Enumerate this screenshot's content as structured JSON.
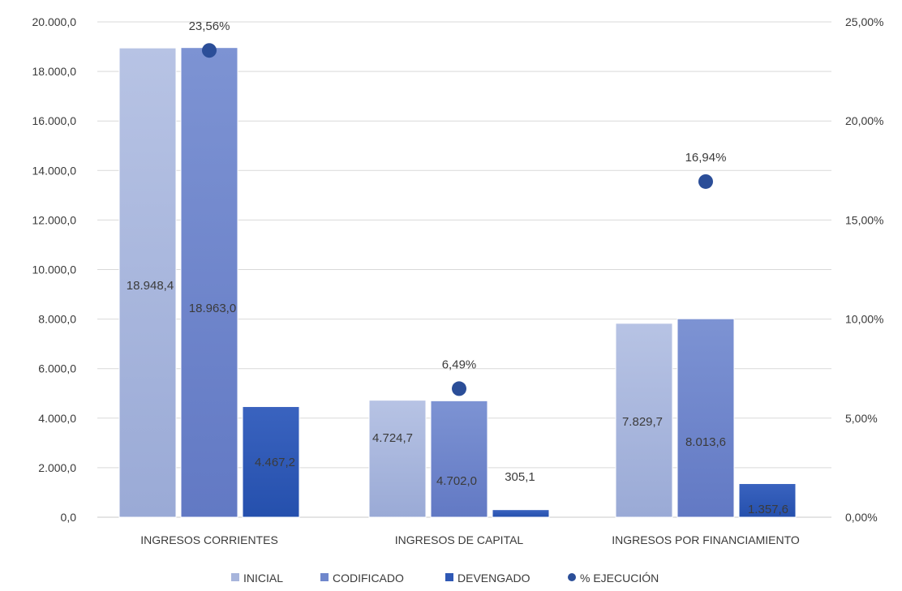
{
  "chart_data": {
    "type": "bar",
    "categories": [
      "INGRESOS CORRIENTES",
      "INGRESOS DE CAPITAL",
      "INGRESOS POR FINANCIAMIENTO"
    ],
    "series": [
      {
        "name": "INICIAL",
        "values": [
          18948.4,
          4724.7,
          7829.7
        ],
        "labels": [
          "18.948,4",
          "4.724,7",
          "7.829,7"
        ],
        "color": "#a7b5dc"
      },
      {
        "name": "CODIFICADO",
        "values": [
          18963.0,
          4702.0,
          8013.6
        ],
        "labels": [
          "18.963,0",
          "4.702,0",
          "8.013,6"
        ],
        "color": "#6f87cc"
      },
      {
        "name": "DEVENGADO",
        "values": [
          4467.2,
          305.1,
          1357.6
        ],
        "labels": [
          "4.467,2",
          "305,1",
          "1.357,6"
        ],
        "color": "#2f58b5"
      }
    ],
    "line_series": {
      "name": "% EJECUCIÓN",
      "values": [
        23.56,
        6.49,
        16.94
      ],
      "labels": [
        "23,56%",
        "6,49%",
        "16,94%"
      ],
      "color": "#2b4e98",
      "axis": "right"
    },
    "ylim": [
      0,
      20000
    ],
    "y_ticks": [
      0,
      2000,
      4000,
      6000,
      8000,
      10000,
      12000,
      14000,
      16000,
      18000,
      20000
    ],
    "y_tick_labels": [
      "0,0",
      "2.000,0",
      "4.000,0",
      "6.000,0",
      "8.000,0",
      "10.000,0",
      "12.000,0",
      "14.000,0",
      "16.000,0",
      "18.000,0",
      "20.000,0"
    ],
    "y2lim": [
      0,
      25
    ],
    "y2_ticks": [
      0,
      5,
      10,
      15,
      20,
      25
    ],
    "y2_tick_labels": [
      "0,00%",
      "5,00%",
      "10,00%",
      "15,00%",
      "20,00%",
      "25,00%"
    ],
    "grid": true,
    "legend_position": "bottom",
    "legend": [
      "INICIAL",
      "CODIFICADO",
      "DEVENGADO",
      "% EJECUCIÓN"
    ],
    "title": "",
    "xlabel": "",
    "ylabel": ""
  }
}
